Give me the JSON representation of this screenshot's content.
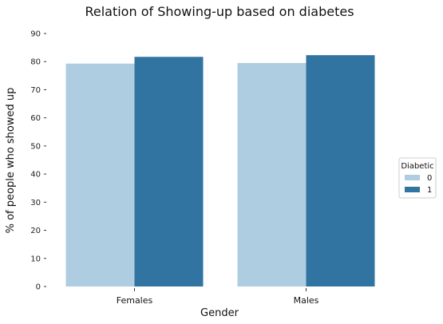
{
  "chart_data": {
    "type": "bar",
    "title": "Relation of Showing-up based on diabetes",
    "xlabel": "Gender",
    "ylabel": "% of people who showed up",
    "categories": [
      "Females",
      "Males"
    ],
    "ylim": [
      0,
      90
    ],
    "yticks": [
      0,
      10,
      20,
      30,
      40,
      50,
      60,
      70,
      80,
      90
    ],
    "grid": false,
    "legend": {
      "title": "Diabetic",
      "position": "right-center"
    },
    "series": [
      {
        "name": "0",
        "values": [
          79.3,
          79.5
        ],
        "color": "#aecde1"
      },
      {
        "name": "1",
        "values": [
          81.7,
          82.3
        ],
        "color": "#3274a1"
      }
    ]
  }
}
